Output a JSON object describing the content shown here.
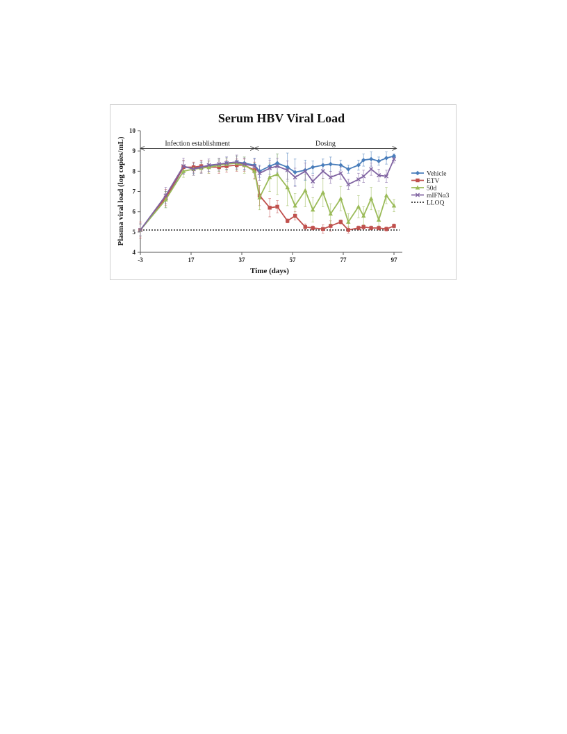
{
  "colors": {
    "Vehicle": "#4a7ebb",
    "ETV": "#c0504d",
    "50d": "#9bbb59",
    "mIFNα3": "#8064a2",
    "LLOQ": "#111111"
  },
  "chart_data": {
    "type": "line",
    "title": "Serum HBV Viral Load",
    "xlabel": "Time (days)",
    "ylabel": "Plasma viral load (log copies/mL)",
    "xlim": [
      -3,
      99
    ],
    "ylim": [
      4,
      10
    ],
    "x_ticks": [
      -3,
      17,
      37,
      57,
      77,
      97
    ],
    "y_ticks": [
      4,
      5,
      6,
      7,
      8,
      9,
      10
    ],
    "grid": false,
    "legend_position": "right",
    "annotations": [
      {
        "text": "Infection establishment",
        "x_start": -3,
        "x_end": 42,
        "y": 9.4
      },
      {
        "text": "Dosing",
        "x_start": 42,
        "x_end": 98,
        "y": 9.4
      }
    ],
    "reference_line": {
      "name": "LLOQ",
      "y": 5.1
    },
    "series": [
      {
        "name": "Vehicle",
        "marker": "diamond",
        "x": [
          -3,
          7,
          14,
          18,
          21,
          24,
          28,
          31,
          35,
          38,
          42,
          44,
          48,
          51,
          55,
          58,
          62,
          65,
          69,
          72,
          76,
          79,
          83,
          85,
          88,
          91,
          94,
          97
        ],
        "y": [
          5.1,
          6.6,
          8.2,
          8.15,
          8.2,
          8.25,
          8.3,
          8.4,
          8.45,
          8.4,
          8.3,
          8.0,
          8.25,
          8.4,
          8.2,
          7.95,
          8.05,
          8.2,
          8.3,
          8.35,
          8.3,
          8.1,
          8.3,
          8.55,
          8.6,
          8.5,
          8.65,
          8.75
        ],
        "err": [
          0.3,
          0.4,
          0.3,
          0.25,
          0.25,
          0.25,
          0.3,
          0.3,
          0.3,
          0.3,
          0.35,
          0.3,
          0.4,
          0.45,
          0.7,
          0.65,
          0.5,
          0.3,
          0.3,
          0.35,
          0.25,
          0.2,
          0.25,
          0.3,
          0.35,
          0.2,
          0.3,
          0.1
        ]
      },
      {
        "name": "ETV",
        "marker": "square",
        "x": [
          -3,
          7,
          14,
          18,
          21,
          24,
          28,
          31,
          35,
          38,
          42,
          44,
          48,
          51,
          55,
          58,
          62,
          65,
          69,
          72,
          76,
          79,
          83,
          85,
          88,
          91,
          94,
          97
        ],
        "y": [
          5.1,
          6.7,
          8.2,
          8.2,
          8.25,
          8.2,
          8.2,
          8.25,
          8.3,
          8.3,
          8.05,
          6.8,
          6.2,
          6.25,
          5.55,
          5.8,
          5.25,
          5.2,
          5.15,
          5.3,
          5.5,
          5.1,
          5.2,
          5.25,
          5.2,
          5.2,
          5.15,
          5.3
        ],
        "err": [
          0.4,
          0.4,
          0.35,
          0.25,
          0.3,
          0.3,
          0.3,
          0.3,
          0.3,
          0.3,
          0.4,
          0.5,
          0.45,
          0.3,
          0.1,
          0.2,
          0.15,
          0.1,
          0.2,
          0.25,
          0.1,
          0.15,
          0.1,
          0.1,
          0.1,
          0.1,
          0.1,
          0.1
        ]
      },
      {
        "name": "50d",
        "marker": "triangle",
        "x": [
          -3,
          7,
          14,
          18,
          21,
          24,
          28,
          31,
          35,
          38,
          42,
          44,
          48,
          51,
          55,
          58,
          62,
          65,
          69,
          72,
          76,
          79,
          83,
          85,
          88,
          91,
          94,
          97
        ],
        "y": [
          5.1,
          6.6,
          8.0,
          8.1,
          8.15,
          8.2,
          8.3,
          8.35,
          8.4,
          8.3,
          8.0,
          6.7,
          7.7,
          7.85,
          7.2,
          6.3,
          7.05,
          6.1,
          6.95,
          5.9,
          6.65,
          5.5,
          6.25,
          5.8,
          6.65,
          5.6,
          6.8,
          6.3
        ],
        "err": [
          0.3,
          0.4,
          0.3,
          0.3,
          0.25,
          0.3,
          0.3,
          0.3,
          0.35,
          0.4,
          0.4,
          0.6,
          0.7,
          1.0,
          0.9,
          0.6,
          0.8,
          0.6,
          0.7,
          0.5,
          0.6,
          0.4,
          0.55,
          0.45,
          0.55,
          0.45,
          0.4,
          0.3
        ]
      },
      {
        "name": "mIFNα3",
        "marker": "x",
        "x": [
          -3,
          7,
          14,
          18,
          21,
          24,
          28,
          31,
          35,
          38,
          42,
          44,
          48,
          51,
          55,
          58,
          62,
          65,
          69,
          72,
          76,
          79,
          83,
          85,
          88,
          91,
          94,
          97
        ],
        "y": [
          5.1,
          6.8,
          8.25,
          8.1,
          8.2,
          8.3,
          8.35,
          8.4,
          8.45,
          8.35,
          8.25,
          7.9,
          8.15,
          8.25,
          8.05,
          7.7,
          8.0,
          7.5,
          8.0,
          7.7,
          7.9,
          7.35,
          7.6,
          7.75,
          8.1,
          7.8,
          7.75,
          8.6
        ],
        "err": [
          0.3,
          0.4,
          0.4,
          0.3,
          0.3,
          0.3,
          0.3,
          0.3,
          0.35,
          0.3,
          0.35,
          0.35,
          0.4,
          0.4,
          0.45,
          0.45,
          0.4,
          0.3,
          0.35,
          0.3,
          0.3,
          0.25,
          0.3,
          0.3,
          0.3,
          0.3,
          0.3,
          0.2
        ]
      }
    ],
    "legend": [
      "Vehicle",
      "ETV",
      "50d",
      "mIFNα3",
      "LLOQ"
    ]
  }
}
